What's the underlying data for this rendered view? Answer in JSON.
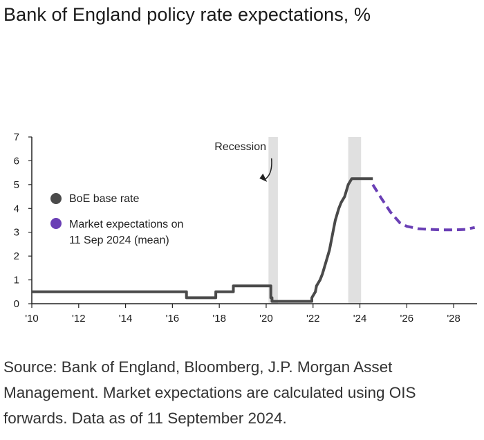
{
  "title": "Bank of England policy rate expectations, %",
  "source_note": "Source: Bank of England, Bloomberg, J.P. Morgan Asset Management. Market expectations are calculated using OIS forwards. Data as of 11 September 2024.",
  "colors": {
    "base_rate": "#4a4a4a",
    "expectations": "#6a3fb5",
    "recession_band": "#e0e0e0",
    "axis": "#222222"
  },
  "chart_data": {
    "type": "line",
    "title": "Bank of England policy rate expectations, %",
    "xlabel": "",
    "ylabel": "%",
    "xlim": [
      2010,
      2029
    ],
    "ylim": [
      0,
      7
    ],
    "yticks": [
      0,
      1,
      2,
      3,
      4,
      5,
      6,
      7
    ],
    "xticks": [
      {
        "value": 2010,
        "label": "'10"
      },
      {
        "value": 2012,
        "label": "'12"
      },
      {
        "value": 2014,
        "label": "'14"
      },
      {
        "value": 2016,
        "label": "'16"
      },
      {
        "value": 2018,
        "label": "'18"
      },
      {
        "value": 2020,
        "label": "'20"
      },
      {
        "value": 2022,
        "label": "'22"
      },
      {
        "value": 2024,
        "label": "'24"
      },
      {
        "value": 2026,
        "label": "'26"
      },
      {
        "value": 2028,
        "label": "'28"
      }
    ],
    "shaded_periods": [
      {
        "start": 2020.1,
        "end": 2020.5,
        "label": "Recession"
      },
      {
        "start": 2023.5,
        "end": 2024.05,
        "label": "Recession"
      }
    ],
    "annotation": {
      "text": "Recession",
      "x": 2018.9,
      "y": 6.45
    },
    "series": [
      {
        "name": "BoE base rate",
        "style": "solid",
        "x": [
          2010.0,
          2016.6,
          2016.6,
          2017.85,
          2017.85,
          2018.6,
          2018.6,
          2020.2,
          2020.2,
          2020.25,
          2020.25,
          2021.95,
          2021.95,
          2022.1,
          2022.15,
          2022.3,
          2022.4,
          2022.55,
          2022.7,
          2022.85,
          2022.95,
          2023.1,
          2023.2,
          2023.35,
          2023.5,
          2023.65,
          2024.55
        ],
        "y": [
          0.5,
          0.5,
          0.25,
          0.25,
          0.5,
          0.5,
          0.75,
          0.75,
          0.25,
          0.25,
          0.1,
          0.1,
          0.25,
          0.5,
          0.75,
          1.0,
          1.25,
          1.75,
          2.25,
          3.0,
          3.5,
          4.0,
          4.25,
          4.5,
          5.0,
          5.25,
          5.25
        ]
      },
      {
        "name": "Market expectations on 11 Sep 2024 (mean)",
        "style": "dashed",
        "x": [
          2024.55,
          2024.9,
          2025.3,
          2025.7,
          2026.0,
          2026.5,
          2027.0,
          2027.5,
          2028.0,
          2028.5,
          2028.9
        ],
        "y": [
          5.0,
          4.45,
          3.85,
          3.4,
          3.25,
          3.15,
          3.12,
          3.1,
          3.1,
          3.12,
          3.2
        ]
      }
    ],
    "legend": {
      "position": "left-middle",
      "entries": [
        {
          "label": "BoE base rate",
          "color": "#4a4a4a"
        },
        {
          "label_lines": [
            "Market expectations on",
            "11 Sep 2024 (mean)"
          ],
          "color": "#6a3fb5"
        }
      ]
    }
  }
}
